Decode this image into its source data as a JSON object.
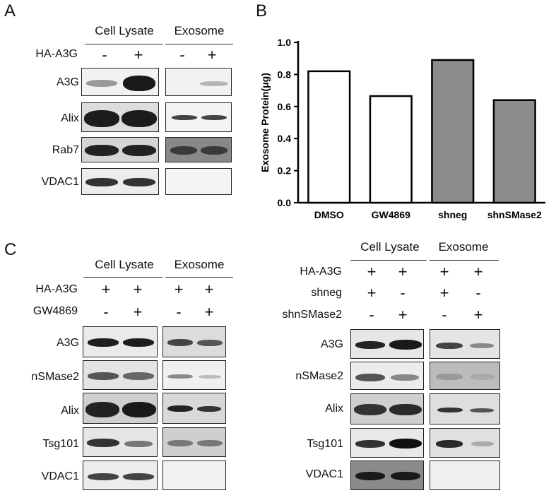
{
  "panels": {
    "a": "A",
    "b": "B",
    "c": "C"
  },
  "panel_a": {
    "headers": [
      "Cell Lysate",
      "Exosome"
    ],
    "condition_label": "HA-A3G",
    "condition_signs": [
      "-",
      "+",
      "-",
      "+"
    ],
    "rows": [
      "A3G",
      "Alix",
      "Rab7",
      "VDAC1"
    ]
  },
  "panel_c_left": {
    "headers": [
      "Cell Lysate",
      "Exosome"
    ],
    "conditions": [
      {
        "label": "HA-A3G",
        "signs": [
          "+",
          "+",
          "+",
          "+"
        ]
      },
      {
        "label": "GW4869",
        "signs": [
          "-",
          "+",
          "-",
          "+"
        ]
      }
    ],
    "rows": [
      "A3G",
      "nSMase2",
      "Alix",
      "Tsg101",
      "VDAC1"
    ]
  },
  "panel_c_right": {
    "headers": [
      "Cell Lysate",
      "Exosome"
    ],
    "conditions": [
      {
        "label": "HA-A3G",
        "signs": [
          "+",
          "+",
          "+",
          "+"
        ]
      },
      {
        "label": "shneg",
        "signs": [
          "+",
          "-",
          "+",
          "-"
        ]
      },
      {
        "label": "shnSMase2",
        "signs": [
          "-",
          "+",
          "-",
          "+"
        ]
      }
    ],
    "rows": [
      "A3G",
      "nSMase2",
      "Alix",
      "Tsg101",
      "VDAC1"
    ]
  },
  "chart_data": {
    "type": "bar",
    "categories": [
      "DMSO",
      "GW4869",
      "shneg",
      "shnSMase2"
    ],
    "values": [
      0.82,
      0.665,
      0.89,
      0.64
    ],
    "bar_fills": [
      "#ffffff",
      "#ffffff",
      "#8c8c8c",
      "#8c8c8c"
    ],
    "ylabel": "Exosome Protein(μg)",
    "ylim": [
      0,
      1.0
    ],
    "yticks": [
      "0.0",
      "0.2",
      "0.4",
      "0.6",
      "0.8",
      "1.0"
    ],
    "grid": false
  }
}
